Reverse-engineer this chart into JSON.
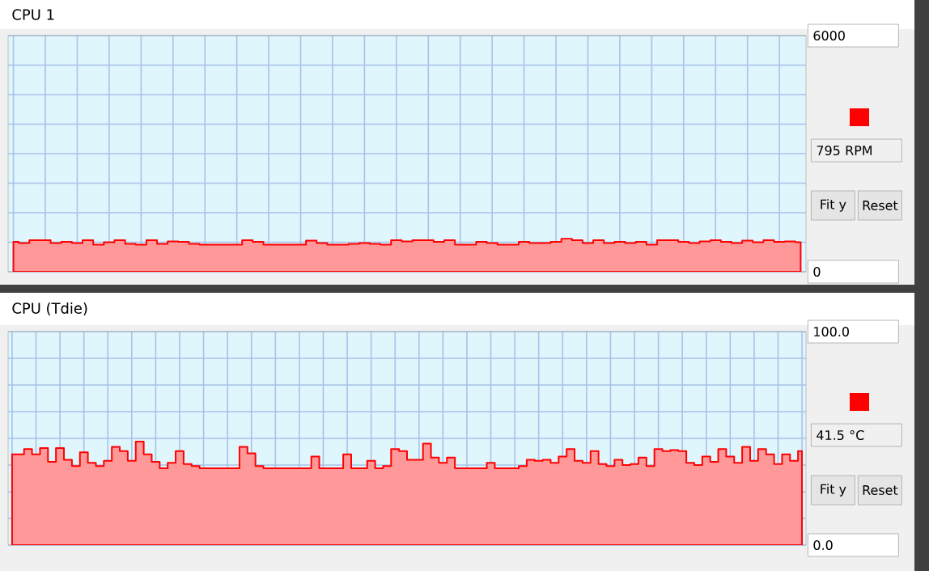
{
  "chart_data": [
    {
      "type": "area",
      "title": "CPU 1",
      "color": "#ff9999",
      "grid": true,
      "tick_labels": "y",
      "categories": [
        null,
        null,
        null,
        null,
        null,
        null,
        null,
        null,
        null,
        null,
        null,
        null,
        null,
        null,
        null,
        null,
        null,
        null,
        null,
        null,
        null,
        null,
        null,
        null,
        null,
        null,
        null,
        null,
        null,
        null,
        null,
        null,
        null,
        null,
        null,
        null,
        null,
        null,
        null,
        null,
        null,
        null,
        null,
        null,
        null,
        null,
        null,
        null,
        null,
        null,
        null,
        null,
        null,
        null,
        null,
        null,
        null,
        null,
        null,
        null,
        null,
        null,
        null,
        null,
        null,
        null,
        null,
        null,
        null,
        null,
        null,
        null,
        null,
        null,
        null
      ],
      "values": [
        760,
        730,
        800,
        800,
        730,
        760,
        730,
        800,
        690,
        750,
        800,
        710,
        690,
        800,
        710,
        770,
        760,
        710,
        690,
        690,
        690,
        690,
        800,
        760,
        690,
        690,
        690,
        690,
        790,
        730,
        690,
        690,
        710,
        730,
        710,
        690,
        800,
        770,
        800,
        800,
        760,
        800,
        690,
        690,
        760,
        730,
        690,
        690,
        760,
        730,
        730,
        760,
        840,
        800,
        730,
        800,
        730,
        760,
        730,
        760,
        690,
        800,
        800,
        760,
        730,
        770,
        800,
        760,
        730,
        790,
        750,
        800,
        760,
        770,
        750
      ],
      "ylim": [
        0,
        6000
      ],
      "yticks": [
        0,
        {
          "value": 750,
          "label": null
        },
        {
          "value": 1500,
          "label": null
        },
        {
          "value": 2250,
          "label": null
        },
        {
          "value": 3000,
          "label": null
        },
        {
          "value": 3750,
          "label": null
        },
        {
          "value": 4500,
          "label": null
        },
        {
          "value": 5250,
          "label": null
        },
        6000
      ],
      "annotations": [
        "795 RPM",
        "Fit y",
        "Reset"
      ]
    },
    {
      "type": "area",
      "title": "CPU (Tdie)",
      "color": "#ff9999",
      "grid": true,
      "tick_labels": "y",
      "categories": [
        null,
        null,
        null,
        null,
        null,
        null,
        null,
        null,
        null,
        null,
        null,
        null,
        null,
        null,
        null,
        null,
        null,
        null,
        null,
        null,
        null,
        null,
        null,
        null,
        null,
        null,
        null,
        null,
        null,
        null,
        null,
        null,
        null,
        null,
        null,
        null,
        null,
        null,
        null,
        null,
        null,
        null,
        null,
        null,
        null,
        null,
        null,
        null,
        null,
        null,
        null,
        null,
        null,
        null,
        null,
        null,
        null,
        null,
        null,
        null,
        null,
        null,
        null,
        null,
        null,
        null,
        null,
        null,
        null,
        null,
        null,
        null,
        null,
        null,
        null,
        null,
        null,
        null,
        null,
        null,
        null,
        null,
        null,
        null,
        null,
        null,
        null,
        null,
        null,
        null,
        null,
        null,
        null,
        null,
        null,
        null,
        null,
        null,
        null,
        null
      ],
      "values": [
        42.5,
        42.5,
        45,
        42.5,
        45.5,
        39,
        45.5,
        40,
        37,
        43.5,
        38.5,
        37,
        39.5,
        46,
        44,
        39.5,
        48.5,
        42.5,
        39,
        36,
        38.5,
        44,
        38,
        37,
        36,
        36,
        36,
        36,
        36,
        46,
        43,
        37,
        36,
        36,
        36,
        36,
        36,
        36,
        41.5,
        36,
        36,
        36,
        42.5,
        36,
        36,
        39.5,
        36,
        37,
        45,
        44,
        40,
        40,
        47.5,
        41,
        38.5,
        41,
        36,
        36,
        36,
        36,
        38.5,
        36,
        36,
        36,
        37,
        40,
        39.5,
        40,
        38.5,
        41.5,
        45,
        39.5,
        38.5,
        44,
        38,
        37,
        40,
        37.5,
        38,
        41,
        37,
        45,
        44,
        44.5,
        44,
        38.5,
        37.5,
        41.5,
        39,
        45,
        41.5,
        38.5,
        46,
        39.5,
        45,
        42.5,
        38,
        42.5,
        39.5,
        44
      ],
      "ylim": [
        0,
        100
      ],
      "yticks": [
        {
          "value": 0,
          "label": "0.0"
        },
        {
          "value": 12.5,
          "label": null
        },
        {
          "value": 25,
          "label": null
        },
        {
          "value": 37.5,
          "label": null
        },
        {
          "value": 50,
          "label": null
        },
        {
          "value": 62.5,
          "label": null
        },
        {
          "value": 75,
          "label": null
        },
        {
          "value": 87.5,
          "label": null
        },
        {
          "value": 100,
          "label": "100.0"
        }
      ],
      "annotations": [
        "41.5 °C",
        "Fit y",
        "Reset"
      ]
    }
  ]
}
